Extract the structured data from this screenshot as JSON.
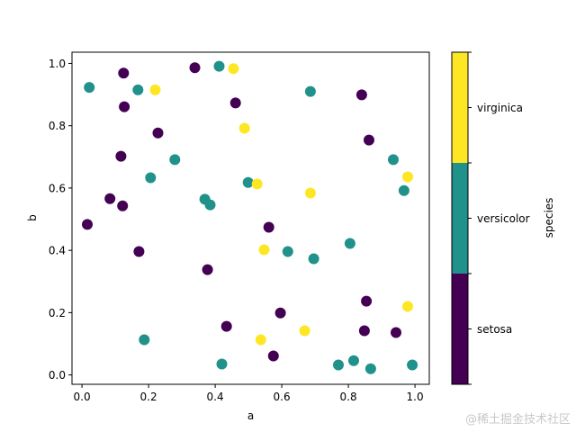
{
  "chart_data": {
    "type": "scatter",
    "title": "",
    "xlabel": "a",
    "ylabel": "b",
    "xlim": [
      -0.03,
      1.043
    ],
    "ylim": [
      -0.03,
      1.036
    ],
    "xticks": [
      0.0,
      0.2,
      0.4,
      0.6,
      0.8,
      1.0
    ],
    "xtick_labels": [
      "0.0",
      "0.2",
      "0.4",
      "0.6",
      "0.8",
      "1.0"
    ],
    "yticks": [
      0.0,
      0.2,
      0.4,
      0.6,
      0.8,
      1.0
    ],
    "ytick_labels": [
      "0.0",
      "0.2",
      "0.4",
      "0.6",
      "0.8",
      "1.0"
    ],
    "grid": false,
    "colorbar": {
      "label": "species",
      "categories": [
        "setosa",
        "versicolor",
        "virginica"
      ],
      "colors": [
        "#440154",
        "#21918c",
        "#fde725"
      ]
    },
    "series": [
      {
        "name": "setosa",
        "color": "#440154",
        "points": [
          [
            0.125,
            0.969
          ],
          [
            0.127,
            0.861
          ],
          [
            0.339,
            0.986
          ],
          [
            0.461,
            0.873
          ],
          [
            0.228,
            0.777
          ],
          [
            0.117,
            0.702
          ],
          [
            0.084,
            0.566
          ],
          [
            0.122,
            0.543
          ],
          [
            0.016,
            0.483
          ],
          [
            0.171,
            0.396
          ],
          [
            0.377,
            0.338
          ],
          [
            0.434,
            0.156
          ],
          [
            0.84,
            0.899
          ],
          [
            0.862,
            0.754
          ],
          [
            0.561,
            0.474
          ],
          [
            0.596,
            0.199
          ],
          [
            0.854,
            0.237
          ],
          [
            0.848,
            0.142
          ],
          [
            0.943,
            0.136
          ],
          [
            0.575,
            0.061
          ]
        ]
      },
      {
        "name": "versicolor",
        "color": "#21918c",
        "points": [
          [
            0.022,
            0.923
          ],
          [
            0.168,
            0.915
          ],
          [
            0.412,
            0.991
          ],
          [
            0.279,
            0.691
          ],
          [
            0.206,
            0.633
          ],
          [
            0.369,
            0.564
          ],
          [
            0.385,
            0.546
          ],
          [
            0.499,
            0.618
          ],
          [
            0.187,
            0.113
          ],
          [
            0.42,
            0.035
          ],
          [
            0.686,
            0.91
          ],
          [
            0.935,
            0.691
          ],
          [
            0.967,
            0.592
          ],
          [
            0.618,
            0.396
          ],
          [
            0.696,
            0.373
          ],
          [
            0.805,
            0.422
          ],
          [
            0.77,
            0.032
          ],
          [
            0.816,
            0.046
          ],
          [
            0.867,
            0.02
          ],
          [
            0.992,
            0.032
          ]
        ]
      },
      {
        "name": "virginica",
        "color": "#fde725",
        "points": [
          [
            0.22,
            0.915
          ],
          [
            0.455,
            0.983
          ],
          [
            0.488,
            0.792
          ],
          [
            0.526,
            0.613
          ],
          [
            0.686,
            0.584
          ],
          [
            0.978,
            0.636
          ],
          [
            0.547,
            0.402
          ],
          [
            0.978,
            0.22
          ],
          [
            0.669,
            0.142
          ],
          [
            0.537,
            0.113
          ]
        ]
      }
    ]
  },
  "watermark": "@稀土掘金技术社区"
}
